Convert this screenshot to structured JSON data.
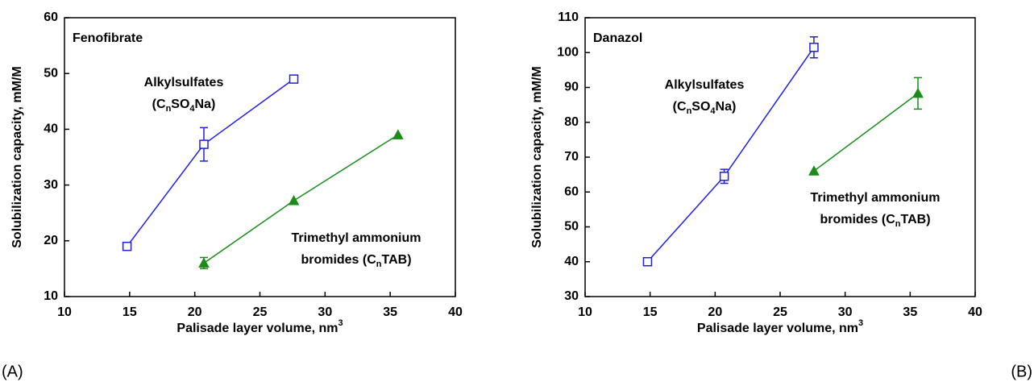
{
  "chart_data": [
    {
      "type": "line",
      "panel": "(A)",
      "title": "Fenofibrate",
      "xlabel": [
        "Palisade layer volume, nm",
        "3"
      ],
      "ylabel": "Solubilization capacity, mM/M",
      "xlim": [
        10,
        40
      ],
      "xticks": [
        10,
        15,
        20,
        25,
        30,
        35,
        40
      ],
      "ylim": [
        10,
        60
      ],
      "yticks": [
        10,
        20,
        30,
        40,
        50,
        60
      ],
      "series": [
        {
          "name": [
            [
              "Alkylsulfates"
            ],
            [
              "(C",
              "n",
              "SO",
              "4",
              "Na)"
            ]
          ],
          "color": "#1f1fe6",
          "marker": "square",
          "x": [
            14.8,
            20.7,
            27.6
          ],
          "values": [
            19,
            37.3,
            49
          ],
          "errors": [
            null,
            3,
            null
          ]
        },
        {
          "name": [
            [
              "Trimethyl ammonium"
            ],
            [
              "bromides (C",
              "n",
              "TAB)"
            ]
          ],
          "color": "#1a8c1a",
          "marker": "triangle",
          "x": [
            20.7,
            27.6,
            35.6
          ],
          "values": [
            16,
            27.2,
            39
          ],
          "errors": [
            1,
            null,
            null
          ]
        }
      ]
    },
    {
      "type": "line",
      "panel": "(B)",
      "title": "Danazol",
      "xlabel": [
        "Palisade layer volume, nm",
        "3"
      ],
      "ylabel": "Solubilization capacity, mM/M",
      "xlim": [
        10,
        40
      ],
      "xticks": [
        10,
        15,
        20,
        25,
        30,
        35,
        40
      ],
      "ylim": [
        30,
        110
      ],
      "yticks": [
        30,
        40,
        50,
        60,
        70,
        80,
        90,
        100,
        110
      ],
      "series": [
        {
          "name": [
            [
              "Alkylsulfates"
            ],
            [
              "(C",
              "n",
              "SO",
              "4",
              "Na)"
            ]
          ],
          "color": "#1f1fe6",
          "marker": "square",
          "x": [
            14.8,
            20.7,
            27.6
          ],
          "values": [
            40,
            64.5,
            101.5
          ],
          "errors": [
            null,
            2,
            3
          ]
        },
        {
          "name": [
            [
              "Trimethyl ammonium"
            ],
            [
              "bromides (C",
              "n",
              "TAB)"
            ]
          ],
          "color": "#1a8c1a",
          "marker": "triangle",
          "x": [
            27.6,
            35.6
          ],
          "values": [
            66,
            88.3
          ],
          "errors": [
            null,
            4.5
          ]
        }
      ]
    }
  ]
}
